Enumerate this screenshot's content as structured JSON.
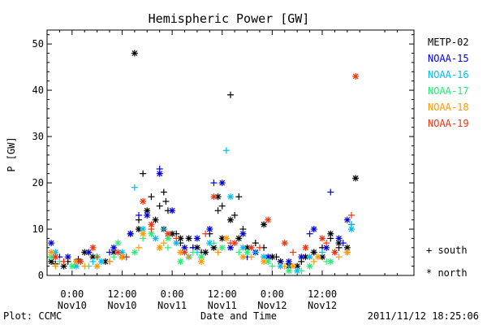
{
  "chart_data": {
    "type": "scatter",
    "title": "Hemispheric Power [GW]",
    "xlabel": "Date and Time",
    "ylabel": "P [GW]",
    "xlim": [
      -6,
      82
    ],
    "ylim": [
      0,
      53
    ],
    "x_unit": "hours since 2011-11-10 00:00",
    "grid": false,
    "legend_position": "right",
    "x_ticks": [
      {
        "x": 0,
        "label": "0:00",
        "sublabel": "Nov10"
      },
      {
        "x": 12,
        "label": "12:00",
        "sublabel": "Nov10"
      },
      {
        "x": 24,
        "label": "0:00",
        "sublabel": "Nov11"
      },
      {
        "x": 36,
        "label": "12:00",
        "sublabel": "Nov11"
      },
      {
        "x": 48,
        "label": "0:00",
        "sublabel": "Nov12"
      },
      {
        "x": 60,
        "label": "12:00",
        "sublabel": "Nov12"
      }
    ],
    "y_ticks": [
      0,
      10,
      20,
      30,
      40,
      50
    ],
    "marker_legend": [
      {
        "symbol": "+",
        "label": "south"
      },
      {
        "symbol": "*",
        "label": "north"
      }
    ],
    "series": [
      {
        "name": "METP-02",
        "color": "#000000",
        "south": [
          [
            -4,
            2.5
          ],
          [
            -1,
            3
          ],
          [
            1.5,
            3.5
          ],
          [
            4,
            5
          ],
          [
            9,
            3
          ],
          [
            13,
            4
          ],
          [
            16,
            12
          ],
          [
            17,
            22
          ],
          [
            19,
            17
          ],
          [
            21,
            15
          ],
          [
            22,
            18
          ],
          [
            22.5,
            16
          ],
          [
            23,
            14
          ],
          [
            25,
            9
          ],
          [
            26,
            7
          ],
          [
            29,
            6
          ],
          [
            31,
            5
          ],
          [
            33,
            9
          ],
          [
            35,
            14
          ],
          [
            36,
            15
          ],
          [
            38,
            39
          ],
          [
            39,
            13
          ],
          [
            40,
            17
          ],
          [
            41,
            10
          ],
          [
            44,
            7
          ],
          [
            46,
            6
          ],
          [
            49,
            4
          ],
          [
            52,
            2.5
          ],
          [
            55,
            3
          ],
          [
            58,
            5
          ],
          [
            60,
            6
          ],
          [
            62,
            8
          ],
          [
            64,
            6
          ],
          [
            66,
            5
          ],
          [
            67,
            11
          ]
        ],
        "north": [
          [
            -5,
            3
          ],
          [
            -2,
            2
          ],
          [
            1,
            3
          ],
          [
            3,
            5
          ],
          [
            5,
            4
          ],
          [
            8,
            3
          ],
          [
            10,
            5
          ],
          [
            12,
            4
          ],
          [
            14,
            9
          ],
          [
            15,
            48
          ],
          [
            16,
            10
          ],
          [
            18,
            14
          ],
          [
            20,
            12
          ],
          [
            22,
            10
          ],
          [
            24,
            9
          ],
          [
            26,
            8
          ],
          [
            28,
            8
          ],
          [
            30,
            6
          ],
          [
            32,
            5
          ],
          [
            34,
            6
          ],
          [
            35,
            17
          ],
          [
            36,
            8
          ],
          [
            38,
            12
          ],
          [
            40,
            8
          ],
          [
            42,
            6
          ],
          [
            44,
            5
          ],
          [
            46,
            11
          ],
          [
            48,
            4
          ],
          [
            50,
            3
          ],
          [
            52,
            2
          ],
          [
            54,
            2
          ],
          [
            56,
            4
          ],
          [
            58,
            5
          ],
          [
            60,
            4
          ],
          [
            62,
            9
          ],
          [
            64,
            7
          ],
          [
            66,
            6
          ],
          [
            68,
            21
          ]
        ]
      },
      {
        "name": "NOAA-15",
        "color": "#0000dd",
        "south": [
          [
            -3,
            4
          ],
          [
            2,
            3
          ],
          [
            9,
            5
          ],
          [
            16,
            13
          ],
          [
            21,
            23
          ],
          [
            29,
            6
          ],
          [
            34,
            20
          ],
          [
            42,
            4
          ],
          [
            50,
            3
          ],
          [
            57,
            9
          ],
          [
            62,
            18
          ],
          [
            65,
            7
          ]
        ],
        "north": [
          [
            -5,
            7
          ],
          [
            -1,
            4
          ],
          [
            4,
            5
          ],
          [
            10,
            6
          ],
          [
            14,
            9
          ],
          [
            18,
            13
          ],
          [
            21,
            22
          ],
          [
            24,
            14
          ],
          [
            27,
            6
          ],
          [
            30,
            8
          ],
          [
            33,
            10
          ],
          [
            36,
            20
          ],
          [
            38,
            6
          ],
          [
            41,
            9
          ],
          [
            44,
            5
          ],
          [
            47,
            4
          ],
          [
            52,
            3
          ],
          [
            55,
            4
          ],
          [
            58,
            10
          ],
          [
            61,
            6
          ],
          [
            64,
            8
          ],
          [
            66,
            12
          ]
        ]
      },
      {
        "name": "NOAA-16",
        "color": "#00bbee",
        "south": [
          [
            -2,
            3
          ],
          [
            5,
            3
          ],
          [
            15,
            19
          ],
          [
            22,
            10
          ],
          [
            30,
            5
          ],
          [
            37,
            27
          ],
          [
            44,
            5
          ],
          [
            52,
            2
          ],
          [
            60,
            5
          ],
          [
            67,
            11
          ]
        ],
        "north": [
          [
            -4,
            5
          ],
          [
            1,
            2
          ],
          [
            7,
            3
          ],
          [
            12,
            5
          ],
          [
            17,
            10
          ],
          [
            20,
            8
          ],
          [
            25,
            7
          ],
          [
            28,
            4
          ],
          [
            33,
            7
          ],
          [
            38,
            17
          ],
          [
            41,
            6
          ],
          [
            46,
            4
          ],
          [
            50,
            2
          ],
          [
            54,
            1
          ],
          [
            57,
            4
          ],
          [
            63,
            5
          ],
          [
            67,
            10
          ]
        ]
      },
      {
        "name": "NOAA-17",
        "color": "#22ee77",
        "south": [
          [
            -3,
            3
          ],
          [
            4,
            2
          ],
          [
            10,
            4
          ],
          [
            17,
            8
          ],
          [
            23,
            6
          ],
          [
            29,
            5
          ],
          [
            34,
            7
          ],
          [
            40,
            5
          ],
          [
            48,
            2
          ],
          [
            55,
            1
          ],
          [
            61,
            3
          ]
        ],
        "north": [
          [
            -5,
            4
          ],
          [
            0,
            2
          ],
          [
            6,
            4
          ],
          [
            11,
            7
          ],
          [
            15,
            5
          ],
          [
            19,
            9
          ],
          [
            23,
            8
          ],
          [
            26,
            3
          ],
          [
            31,
            4
          ],
          [
            36,
            6
          ],
          [
            42,
            5
          ],
          [
            47,
            3
          ],
          [
            52,
            1
          ],
          [
            57,
            2
          ],
          [
            62,
            3
          ]
        ]
      },
      {
        "name": "NOAA-18",
        "color": "#ff9900",
        "south": [
          [
            -4,
            2
          ],
          [
            3,
            2
          ],
          [
            9,
            3
          ],
          [
            16,
            6
          ],
          [
            22,
            7
          ],
          [
            28,
            4
          ],
          [
            35,
            5
          ],
          [
            43,
            4
          ],
          [
            51,
            2
          ],
          [
            58,
            3
          ],
          [
            64,
            4
          ]
        ],
        "north": [
          [
            -5,
            5
          ],
          [
            1,
            3
          ],
          [
            6,
            2
          ],
          [
            12,
            4
          ],
          [
            17,
            9
          ],
          [
            21,
            6
          ],
          [
            26,
            5
          ],
          [
            31,
            3
          ],
          [
            37,
            8
          ],
          [
            41,
            4
          ],
          [
            46,
            3
          ],
          [
            53,
            2
          ],
          [
            59,
            4
          ],
          [
            66,
            5
          ]
        ]
      },
      {
        "name": "NOAA-19",
        "color": "#ee3311",
        "south": [
          [
            -2,
            3
          ],
          [
            6,
            4
          ],
          [
            13,
            4
          ],
          [
            19,
            10
          ],
          [
            25,
            8
          ],
          [
            32,
            9
          ],
          [
            38,
            7
          ],
          [
            45,
            6
          ],
          [
            53,
            5
          ],
          [
            61,
            7
          ],
          [
            67,
            13
          ]
        ],
        "north": [
          [
            -4,
            4
          ],
          [
            2,
            3
          ],
          [
            5,
            6
          ],
          [
            11,
            5
          ],
          [
            17,
            16
          ],
          [
            19,
            11
          ],
          [
            23,
            9
          ],
          [
            27,
            5
          ],
          [
            34,
            17
          ],
          [
            39,
            7
          ],
          [
            43,
            6
          ],
          [
            47,
            12
          ],
          [
            51,
            7
          ],
          [
            56,
            6
          ],
          [
            60,
            8
          ],
          [
            63,
            5
          ],
          [
            68,
            43
          ]
        ]
      }
    ]
  },
  "footer": {
    "left": "Plot: CCMC",
    "timestamp": "2011/11/12 18:25:06"
  }
}
